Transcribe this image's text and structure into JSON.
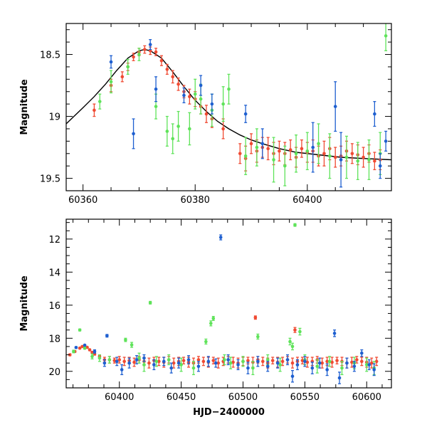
{
  "colors": {
    "red": "#f04a32",
    "green": "#5fe35a",
    "blue": "#1e5fd0",
    "model": "#000000"
  },
  "chart_data": [
    {
      "type": "scatter",
      "title": "",
      "xlabel": "",
      "ylabel": "Magnitude",
      "xlim": [
        60357,
        60415
      ],
      "ylim": [
        19.6,
        18.25
      ],
      "y_inverted": true,
      "grid": false,
      "xticks": [
        60360,
        60380,
        60400
      ],
      "yticks": [
        18.5,
        19,
        19.5
      ],
      "xtick_labels": [
        "60360",
        "60380",
        "60400"
      ],
      "ytick_labels": [
        "18.5",
        "19",
        "19.5"
      ],
      "model_curve": {
        "x": [
          60357,
          60360,
          60362,
          60364,
          60366,
          60368,
          60370,
          60371,
          60372,
          60374,
          60376,
          60378,
          60380,
          60382,
          60384,
          60386,
          60388,
          60390,
          60392,
          60395,
          60398,
          60402,
          60406,
          60410,
          60415
        ],
        "y": [
          19.06,
          18.93,
          18.84,
          18.74,
          18.63,
          18.53,
          18.47,
          18.46,
          18.47,
          18.53,
          18.64,
          18.76,
          18.87,
          18.96,
          19.04,
          19.1,
          19.15,
          19.19,
          19.22,
          19.26,
          19.29,
          19.31,
          19.33,
          19.34,
          19.35
        ]
      },
      "series": [
        {
          "color": "#f04a32",
          "x": [
            60362,
            60365,
            60367,
            60368,
            60369,
            60370,
            60371,
            60372,
            60373,
            60374,
            60375,
            60376,
            60377,
            60378,
            60379,
            60380,
            60381,
            60382,
            60383,
            60385,
            60388,
            60389,
            60390,
            60391,
            60392,
            60393,
            60394,
            60395,
            60396,
            60397,
            60398,
            60399,
            60400,
            60401,
            60402,
            60403,
            60404,
            60405,
            60406,
            60407,
            60408,
            60409,
            60410,
            60411,
            60412,
            60413
          ],
          "y": [
            18.95,
            18.75,
            18.68,
            18.6,
            18.52,
            18.48,
            18.46,
            18.47,
            18.48,
            18.55,
            18.62,
            18.68,
            18.74,
            18.8,
            18.84,
            18.86,
            18.92,
            18.98,
            19.02,
            19.1,
            19.3,
            19.34,
            19.22,
            19.28,
            19.25,
            19.26,
            19.3,
            19.28,
            19.3,
            19.27,
            19.33,
            19.26,
            19.29,
            19.28,
            19.32,
            19.3,
            19.26,
            19.33,
            19.32,
            19.28,
            19.3,
            19.31,
            19.33,
            19.3,
            19.36,
            19.35
          ],
          "err": [
            0.05,
            0.05,
            0.04,
            0.03,
            0.03,
            0.03,
            0.03,
            0.03,
            0.03,
            0.04,
            0.04,
            0.05,
            0.05,
            0.05,
            0.06,
            0.06,
            0.06,
            0.07,
            0.07,
            0.08,
            0.08,
            0.1,
            0.08,
            0.09,
            0.08,
            0.09,
            0.09,
            0.08,
            0.09,
            0.08,
            0.08,
            0.07,
            0.08,
            0.09,
            0.08,
            0.1,
            0.09,
            0.08,
            0.08,
            0.08,
            0.08,
            0.08,
            0.08,
            0.07,
            0.07,
            0.08
          ]
        },
        {
          "color": "#5fe35a",
          "x": [
            60363,
            60365,
            60368,
            60370,
            60373,
            60375,
            60376,
            60377,
            60379,
            60380,
            60381,
            60383,
            60385,
            60386,
            60389,
            60391,
            60394,
            60396,
            60398,
            60400,
            60402,
            60404,
            60407,
            60409,
            60411,
            60413,
            60414
          ],
          "y": [
            18.88,
            18.72,
            18.6,
            18.5,
            18.92,
            19.12,
            19.18,
            19.08,
            19.1,
            18.82,
            18.86,
            18.95,
            18.9,
            18.78,
            19.32,
            19.25,
            19.35,
            19.4,
            19.3,
            19.28,
            19.22,
            19.32,
            19.33,
            19.36,
            19.35,
            19.3,
            18.35
          ],
          "err": [
            0.06,
            0.09,
            0.06,
            0.05,
            0.1,
            0.12,
            0.12,
            0.12,
            0.13,
            0.12,
            0.12,
            0.13,
            0.14,
            0.12,
            0.15,
            0.15,
            0.18,
            0.16,
            0.15,
            0.15,
            0.16,
            0.18,
            0.17,
            0.15,
            0.16,
            0.17,
            0.12
          ]
        },
        {
          "color": "#1e5fd0",
          "x": [
            60365,
            60369,
            60372,
            60373,
            60378,
            60381,
            60383,
            60389,
            60392,
            60401,
            60405,
            60406,
            60412,
            60413,
            60414
          ],
          "y": [
            18.56,
            19.14,
            18.42,
            18.78,
            18.83,
            18.75,
            18.9,
            18.98,
            19.22,
            19.25,
            18.92,
            19.35,
            18.98,
            19.4,
            19.2
          ],
          "err": [
            0.05,
            0.12,
            0.04,
            0.1,
            0.06,
            0.08,
            0.08,
            0.07,
            0.12,
            0.2,
            0.2,
            0.22,
            0.1,
            0.1,
            0.08
          ]
        }
      ]
    },
    {
      "type": "scatter",
      "title": "",
      "xlabel": "HJD−2400000",
      "ylabel": "Magnitude",
      "xlim": [
        60357,
        60620
      ],
      "ylim": [
        21.0,
        10.8
      ],
      "y_inverted": true,
      "grid": false,
      "xticks": [
        60400,
        60450,
        60500,
        60550,
        60600
      ],
      "yticks": [
        12,
        14,
        16,
        18,
        20
      ],
      "xtick_labels": [
        "60400",
        "60450",
        "60500",
        "60550",
        "60600"
      ],
      "ytick_labels": [
        "12",
        "14",
        "16",
        "18",
        "20"
      ],
      "series": [
        {
          "color": "#f04a32",
          "x": [
            60360,
            60364,
            60368,
            60370,
            60372,
            60374,
            60376,
            60378,
            60380,
            60384,
            60388,
            60392,
            60396,
            60400,
            60404,
            60408,
            60412,
            60416,
            60420,
            60424,
            60428,
            60432,
            60436,
            60440,
            60444,
            60448,
            60452,
            60456,
            60460,
            60464,
            60468,
            60472,
            60476,
            60480,
            60484,
            60488,
            60492,
            60496,
            60500,
            60504,
            60508,
            60510,
            60512,
            60516,
            60520,
            60524,
            60528,
            60532,
            60536,
            60540,
            60542,
            60544,
            60548,
            60552,
            60556,
            60560,
            60564,
            60568,
            60572,
            60576,
            60580,
            60584,
            60588,
            60592,
            60596,
            60600,
            60604,
            60608
          ],
          "y": [
            19.0,
            18.8,
            18.6,
            18.5,
            18.46,
            18.55,
            18.7,
            18.85,
            18.95,
            19.1,
            19.3,
            19.3,
            19.35,
            19.3,
            19.4,
            19.35,
            19.45,
            19.3,
            19.4,
            19.5,
            19.35,
            19.4,
            19.45,
            19.3,
            19.5,
            19.4,
            19.35,
            19.45,
            19.5,
            19.3,
            19.4,
            19.45,
            19.35,
            19.5,
            19.4,
            19.3,
            19.45,
            19.5,
            19.4,
            19.35,
            19.45,
            16.75,
            19.3,
            19.4,
            19.5,
            19.35,
            19.45,
            19.4,
            19.3,
            19.5,
            17.5,
            19.4,
            19.35,
            19.45,
            19.4,
            19.3,
            19.5,
            19.4,
            19.45,
            19.35,
            19.4,
            19.5,
            19.45,
            19.3,
            19.4,
            19.45,
            19.5,
            19.4
          ],
          "err": [
            0.06,
            0.05,
            0.04,
            0.03,
            0.03,
            0.04,
            0.05,
            0.06,
            0.07,
            0.08,
            0.15,
            0.2,
            0.15,
            0.2,
            0.25,
            0.2,
            0.25,
            0.2,
            0.25,
            0.3,
            0.2,
            0.25,
            0.3,
            0.2,
            0.3,
            0.25,
            0.2,
            0.3,
            0.3,
            0.2,
            0.25,
            0.3,
            0.2,
            0.3,
            0.25,
            0.2,
            0.3,
            0.3,
            0.25,
            0.2,
            0.3,
            0.1,
            0.2,
            0.25,
            0.3,
            0.2,
            0.3,
            0.25,
            0.2,
            0.3,
            0.15,
            0.25,
            0.2,
            0.3,
            0.25,
            0.2,
            0.3,
            0.25,
            0.3,
            0.2,
            0.25,
            0.3,
            0.3,
            0.2,
            0.25,
            0.3,
            0.3,
            0.25
          ]
        },
        {
          "color": "#5fe35a",
          "x": [
            60363,
            60368,
            60372,
            60378,
            60384,
            60392,
            60405,
            60410,
            60416,
            60420,
            60425,
            60430,
            60440,
            60450,
            60460,
            60470,
            60474,
            60476,
            60485,
            60490,
            60500,
            60508,
            60512,
            60520,
            60530,
            60538,
            60540,
            60542,
            60546,
            60550,
            60560,
            60570,
            60580,
            60590,
            60600,
            60606
          ],
          "y": [
            18.8,
            17.5,
            18.6,
            19.1,
            19.2,
            19.3,
            18.1,
            18.4,
            19.2,
            19.6,
            15.85,
            19.4,
            19.3,
            19.6,
            19.8,
            18.2,
            17.1,
            16.8,
            19.3,
            19.5,
            19.4,
            19.8,
            17.9,
            19.3,
            19.6,
            18.2,
            18.5,
            11.15,
            17.6,
            19.3,
            19.7,
            19.4,
            19.8,
            19.5,
            19.6,
            19.8
          ],
          "err": [
            0.08,
            0.06,
            0.06,
            0.15,
            0.2,
            0.2,
            0.1,
            0.15,
            0.3,
            0.4,
            0.08,
            0.3,
            0.3,
            0.4,
            0.4,
            0.15,
            0.15,
            0.12,
            0.3,
            0.35,
            0.3,
            0.4,
            0.15,
            0.3,
            0.4,
            0.2,
            0.2,
            0.08,
            0.2,
            0.3,
            0.4,
            0.3,
            0.4,
            0.35,
            0.4,
            0.4
          ]
        },
        {
          "color": "#1e5fd0",
          "x": [
            60365,
            60372,
            60380,
            60388,
            60390,
            60398,
            60402,
            60408,
            60414,
            60420,
            60428,
            60436,
            60442,
            60448,
            60456,
            60464,
            60472,
            60478,
            60482,
            60488,
            60496,
            60504,
            60512,
            60520,
            60528,
            60536,
            60540,
            60544,
            60550,
            60556,
            60562,
            60568,
            60574,
            60578,
            60584,
            60590,
            60596,
            60602,
            60606
          ],
          "y": [
            18.56,
            18.42,
            18.8,
            19.5,
            17.85,
            19.4,
            19.9,
            19.5,
            19.3,
            19.2,
            19.6,
            19.4,
            19.8,
            19.5,
            19.3,
            19.7,
            19.4,
            19.5,
            11.9,
            19.3,
            19.6,
            19.8,
            19.4,
            19.7,
            19.5,
            19.3,
            20.3,
            19.6,
            19.4,
            19.8,
            19.5,
            19.9,
            17.7,
            20.4,
            19.5,
            19.7,
            18.9,
            19.6,
            19.9
          ],
          "err": [
            0.05,
            0.04,
            0.1,
            0.2,
            0.08,
            0.25,
            0.3,
            0.3,
            0.25,
            0.2,
            0.3,
            0.25,
            0.3,
            0.3,
            0.25,
            0.3,
            0.3,
            0.25,
            0.15,
            0.3,
            0.3,
            0.35,
            0.3,
            0.3,
            0.3,
            0.3,
            0.35,
            0.3,
            0.3,
            0.35,
            0.3,
            0.35,
            0.2,
            0.35,
            0.3,
            0.3,
            0.2,
            0.3,
            0.35
          ]
        }
      ]
    }
  ]
}
